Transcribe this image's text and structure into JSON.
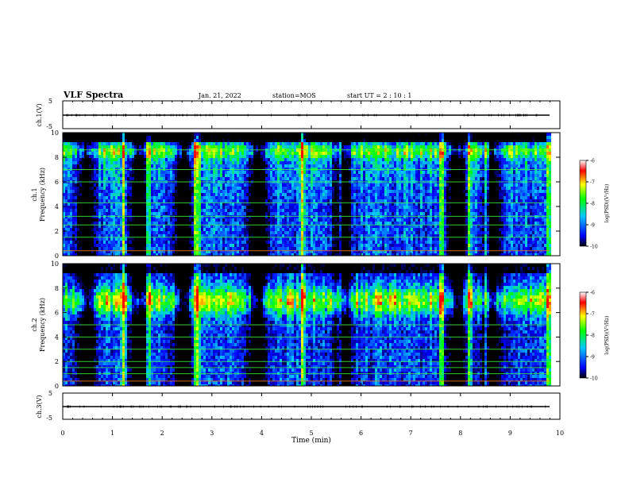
{
  "header": {
    "title": "VLF Spectra",
    "date": "Jan. 21, 2022",
    "station": "station=MOS",
    "start": "start UT =  2 : 10 : 1"
  },
  "colors": {
    "background": "#ffffff",
    "ink": "#000000",
    "colormap": [
      "#000000",
      "#0000ff",
      "#00c8ff",
      "#00ff00",
      "#ffff00",
      "#ff0000",
      "#ffffff"
    ]
  },
  "chart_data": [
    {
      "id": "ch1-waveform",
      "type": "line",
      "ylabel": "ch.1(V)",
      "ylim": [
        -5,
        5
      ],
      "yticks": [
        "5",
        "-5"
      ],
      "xlim": [
        0,
        10
      ],
      "series": [
        {
          "x": [
            0,
            9.8
          ],
          "values": [
            -0.3,
            -0.3
          ]
        }
      ]
    },
    {
      "id": "ch1-spectrogram",
      "type": "heatmap",
      "ylabel": "ch.1\nFrequency (kHz)",
      "ylim": [
        0,
        10
      ],
      "yticks": [
        "0",
        "2",
        "4",
        "6",
        "8",
        "10"
      ],
      "xlim": [
        0,
        10
      ],
      "data_extent_min": 9.8,
      "colorbar": {
        "label": "log(PSD)(V²/Hz)",
        "range": [
          -10,
          -6
        ],
        "ticks": [
          "-6",
          "-7",
          "-8",
          "-9",
          "-10"
        ]
      },
      "dominant_band_khz": [
        6.5,
        9.0
      ],
      "strong_lines_khz": [
        0.4,
        1.5,
        2.5,
        3.2,
        4.3,
        6.0,
        7.0,
        8.6
      ]
    },
    {
      "id": "ch2-spectrogram",
      "type": "heatmap",
      "ylabel": "ch.2\nFrequency (kHz)",
      "ylim": [
        0,
        10
      ],
      "yticks": [
        "0",
        "2",
        "4",
        "6",
        "8",
        "10"
      ],
      "xlim": [
        0,
        10
      ],
      "data_extent_min": 9.8,
      "colorbar": {
        "label": "log(PSD)(V²/Hz)",
        "range": [
          -10,
          -6
        ],
        "ticks": [
          "-6",
          "-7",
          "-8",
          "-9",
          "-10"
        ]
      },
      "dominant_band_khz": [
        5.5,
        8.0
      ],
      "strong_lines_khz": [
        0.4,
        1.0,
        1.5,
        2.0,
        3.0,
        4.0,
        5.0
      ]
    },
    {
      "id": "ch3-waveform",
      "type": "line",
      "ylabel": "ch.3(V)",
      "ylim": [
        -5,
        5
      ],
      "yticks": [
        "5",
        "-5"
      ],
      "xlim": [
        0,
        10
      ],
      "series": [
        {
          "x": [
            0,
            9.8
          ],
          "values": [
            -0.1,
            -0.1
          ]
        }
      ]
    }
  ],
  "xaxis": {
    "label": "Time (min)",
    "ticks": [
      "0",
      "1",
      "2",
      "3",
      "4",
      "5",
      "6",
      "7",
      "8",
      "9",
      "10"
    ]
  }
}
